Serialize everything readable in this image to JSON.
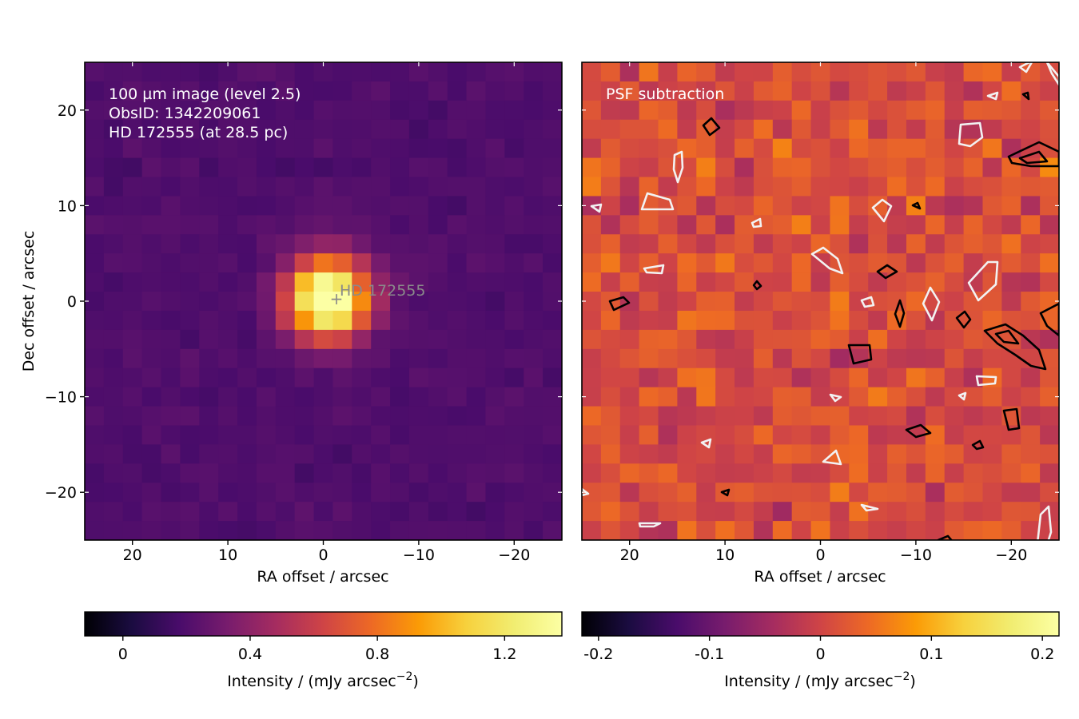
{
  "chart_data": [
    {
      "type": "heatmap",
      "panel": "left",
      "title": "",
      "xlabel": "RA offset / arcsec",
      "ylabel": "Dec offset / arcsec",
      "xlim": [
        25,
        -25
      ],
      "ylim": [
        -25,
        25
      ],
      "x_ticks": [
        20,
        10,
        0,
        -10,
        -20
      ],
      "y_ticks": [
        20,
        10,
        0,
        -10,
        -20
      ],
      "pixel_size_arcsec": 2,
      "grid": false,
      "annotation_lines": [
        "100 µm image (level 2.5)",
        "ObsID: 1342209061",
        "HD 172555 (at 28.5 pc)"
      ],
      "target": {
        "label": "HD 172555",
        "ra_offset": -1.3,
        "dec_offset": 0.3
      },
      "source": {
        "ra_offset": -0.5,
        "dec_offset": 0.3,
        "peak_mjy_arcsec2": 1.35,
        "fwhm_arcsec": 7,
        "background_mjy_arcsec2": 0.2
      },
      "colormap": "inferno",
      "colorbar": {
        "label_main": "Intensity / (mJy arcsec",
        "label_exp": "−2",
        "label_close": ")",
        "vmin": -0.12,
        "vmax": 1.38,
        "ticks": [
          0,
          0.4,
          0.8,
          1.2
        ],
        "tick_labels": [
          "0",
          "0.4",
          "0.8",
          "1.2"
        ]
      }
    },
    {
      "type": "heatmap",
      "panel": "right",
      "title": "",
      "xlabel": "RA offset / arcsec",
      "ylabel": "",
      "xlim": [
        25,
        -25
      ],
      "ylim": [
        -25,
        25
      ],
      "x_ticks": [
        20,
        10,
        0,
        -10,
        -20
      ],
      "pixel_size_arcsec": 2,
      "grid": false,
      "annotation_lines": [
        "PSF subtraction"
      ],
      "colormap": "inferno",
      "contours": {
        "negative_color": "#ffffff",
        "positive_color": "#000000"
      },
      "colorbar": {
        "label_main": "Intensity / (mJy arcsec",
        "label_exp": "−2",
        "label_close": ")",
        "vmin": -0.215,
        "vmax": 0.215,
        "ticks": [
          -0.2,
          -0.1,
          0,
          0.1,
          0.2
        ],
        "tick_labels": [
          "-0.2",
          "-0.1",
          "0",
          "0.1",
          "0.2"
        ]
      }
    }
  ]
}
